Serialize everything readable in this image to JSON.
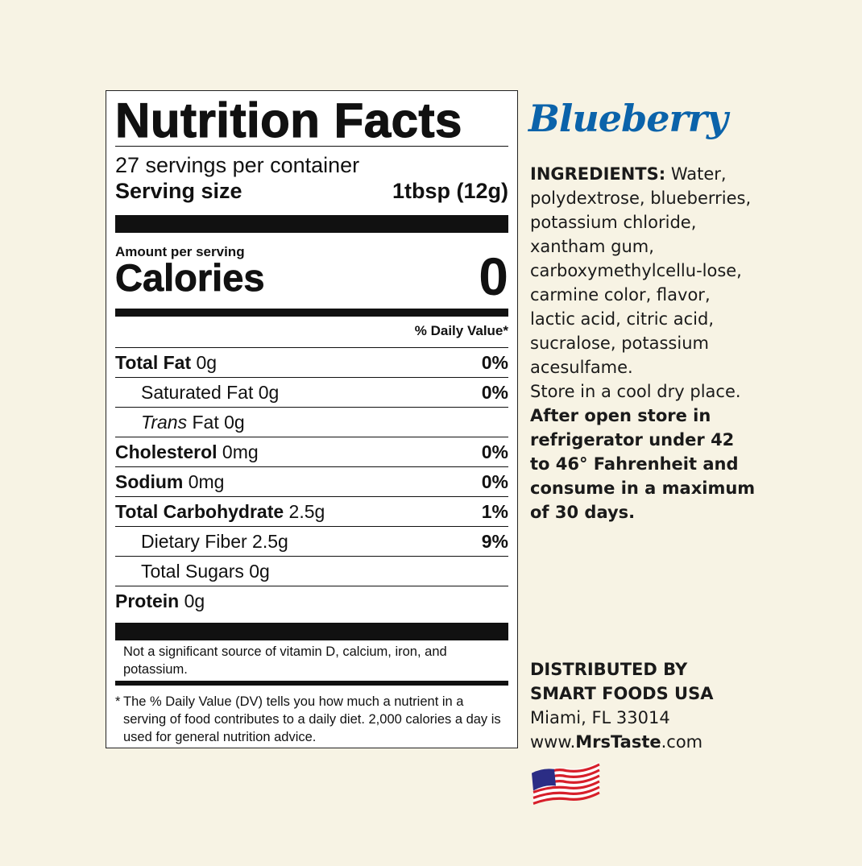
{
  "label": {
    "title": "Nutrition Facts",
    "servings": "27 servings per container",
    "serving_size_label": "Serving size",
    "serving_size_value": "1tbsp (12g)",
    "amount_per_serving": "Amount per serving",
    "calories_label": "Calories",
    "calories_value": "0",
    "daily_value_header": "% Daily Value*",
    "rows": [
      {
        "name": "Total Fat",
        "amount": "0g",
        "dv": "0%"
      },
      {
        "name": "Saturated Fat",
        "amount": "0g",
        "dv": "0%"
      },
      {
        "name": "Trans",
        "suffix": "Fat",
        "amount": "0g",
        "dv": ""
      },
      {
        "name": "Cholesterol",
        "amount": "0mg",
        "dv": "0%"
      },
      {
        "name": "Sodium",
        "amount": "0mg",
        "dv": "0%"
      },
      {
        "name": "Total Carbohydrate",
        "amount": "2.5g",
        "dv": "1%"
      },
      {
        "name": "Dietary Fiber",
        "amount": "2.5g",
        "dv": "9%"
      },
      {
        "name": "Total Sugars",
        "amount": "0g",
        "dv": ""
      },
      {
        "name": "Protein",
        "amount": "0g",
        "dv": ""
      }
    ],
    "vitamin_note": "Not a significant source of vitamin D, calcium, iron, and potassium.",
    "footnote_star": "*",
    "footnote": "The % Daily Value (DV) tells you how much a nutrient in a serving of food contributes to a daily diet. 2,000 calories a day is used for general nutrition advice."
  },
  "product": {
    "flavor": "Blueberry",
    "flavor_color": "#0b63aa",
    "ingredients_label": "INGREDIENTS:",
    "ingredients": "Water, polydextrose, blueberries, potassium chloride, xantham gum, carboxymethylcellu-lose, carmine color, flavor, lactic acid, citric acid, sucralose, potassium acesulfame.",
    "storage": "Store in a cool dry place.",
    "storage_bold": "After open store in refrigerator under 42 to 46° Fahrenheit and consume in a maximum of 30 days."
  },
  "distributor": {
    "line1": "DISTRIBUTED BY",
    "line2": "SMART FOODS USA",
    "address": "Miami, FL 33014",
    "web_prefix": "www.",
    "web_bold": "MrsTaste",
    "web_suffix": ".com",
    "flag_icon": "us-flag-icon"
  }
}
